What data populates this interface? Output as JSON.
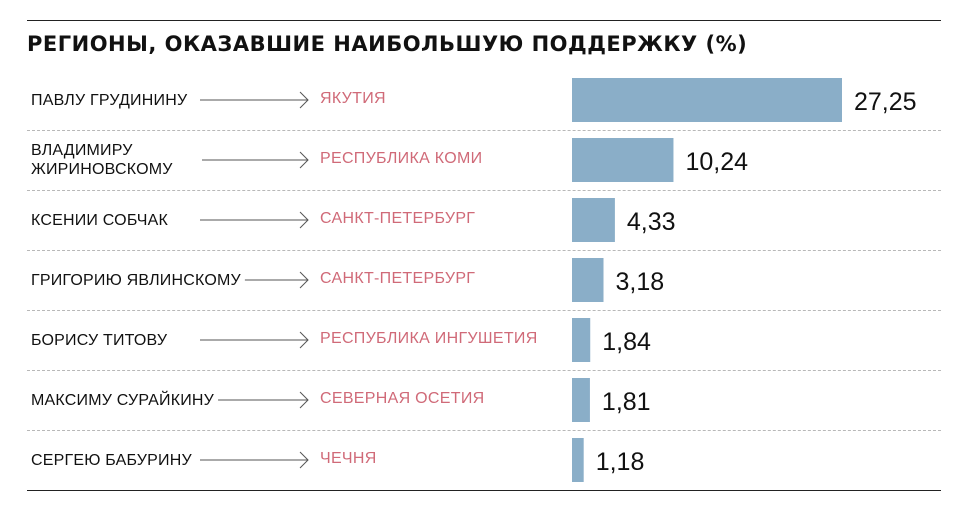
{
  "chart_data": {
    "type": "bar",
    "title": "РЕГИОНЫ, ОКАЗАВШИЕ НАИБОЛЬШУЮ ПОДДЕРЖКУ (%)",
    "orientation": "horizontal",
    "categories": [
      "ПАВЛУ ГРУДИНИНУ",
      "ВЛАДИМИРУ ЖИРИНОВСКОМУ",
      "КСЕНИИ СОБЧАК",
      "ГРИГОРИЮ ЯВЛИНСКОМУ",
      "БОРИСУ ТИТОВУ",
      "МАКСИМУ СУРАЙКИНУ",
      "СЕРГЕЮ БАБУРИНУ"
    ],
    "regions": [
      "ЯКУТИЯ",
      "РЕСПУБЛИКА КОМИ",
      "САНКТ-ПЕТЕРБУРГ",
      "САНКТ-ПЕТЕРБУРГ",
      "РЕСПУБЛИКА ИНГУШЕТИЯ",
      "СЕВЕРНАЯ ОСЕТИЯ",
      "ЧЕЧНЯ"
    ],
    "values": [
      27.25,
      10.24,
      4.33,
      3.18,
      1.84,
      1.81,
      1.18
    ],
    "value_labels": [
      "27,25",
      "10,24",
      "4,33",
      "3,18",
      "1,84",
      "1,81",
      "1,18"
    ],
    "xlim": [
      0,
      27.25
    ],
    "grid": false,
    "colors": {
      "bar": "#8aaec8",
      "region": "#d06a78",
      "text": "#111111"
    }
  }
}
